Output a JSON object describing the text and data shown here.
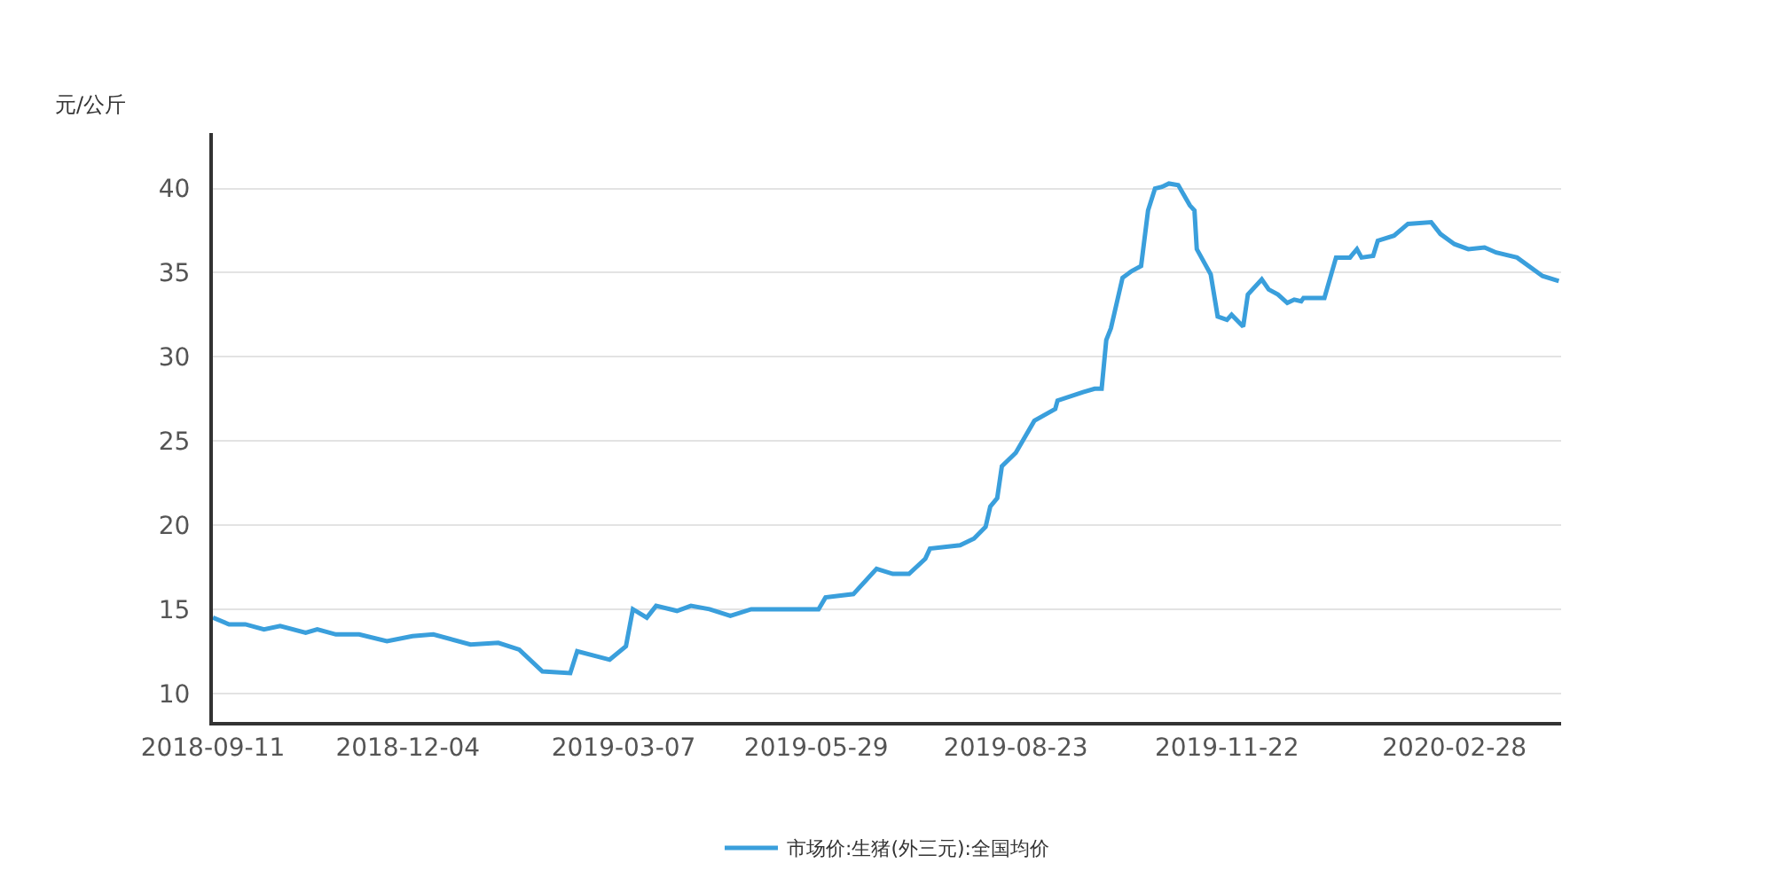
{
  "chart_data": {
    "type": "line",
    "ylabel": "元/公斤",
    "x": [
      "2018-09-11",
      "2018-09-18",
      "2018-09-25",
      "2018-10-03",
      "2018-10-10",
      "2018-10-21",
      "2018-10-26",
      "2018-11-03",
      "2018-11-13",
      "2018-11-25",
      "2018-12-06",
      "2018-12-15",
      "2018-12-31",
      "2019-01-12",
      "2019-01-21",
      "2019-01-31",
      "2019-02-12",
      "2019-02-15",
      "2019-03-01",
      "2019-03-08",
      "2019-03-11",
      "2019-03-17",
      "2019-03-21",
      "2019-03-30",
      "2019-04-05",
      "2019-04-13",
      "2019-04-22",
      "2019-05-01",
      "2019-05-30",
      "2019-06-02",
      "2019-06-14",
      "2019-06-24",
      "2019-07-01",
      "2019-07-08",
      "2019-07-15",
      "2019-07-17",
      "2019-07-30",
      "2019-08-05",
      "2019-08-10",
      "2019-08-12",
      "2019-08-15",
      "2019-08-17",
      "2019-08-23",
      "2019-08-31",
      "2019-09-09",
      "2019-09-10",
      "2019-09-21",
      "2019-09-26",
      "2019-09-29",
      "2019-10-01",
      "2019-10-03",
      "2019-10-08",
      "2019-10-12",
      "2019-10-16",
      "2019-10-19",
      "2019-10-22",
      "2019-10-25",
      "2019-10-28",
      "2019-11-01",
      "2019-11-06",
      "2019-11-08",
      "2019-11-09",
      "2019-11-15",
      "2019-11-18",
      "2019-11-22",
      "2019-11-24",
      "2019-11-29",
      "2019-12-01",
      "2019-12-07",
      "2019-12-10",
      "2019-12-14",
      "2019-12-18",
      "2019-12-21",
      "2019-12-24",
      "2019-12-25",
      "2020-01-03",
      "2020-01-08",
      "2020-01-14",
      "2020-01-17",
      "2020-01-19",
      "2020-01-24",
      "2020-01-26",
      "2020-02-02",
      "2020-02-08",
      "2020-02-18",
      "2020-02-22",
      "2020-02-28",
      "2020-03-05",
      "2020-03-12",
      "2020-03-17",
      "2020-03-26",
      "2020-04-06",
      "2020-04-13"
    ],
    "series": [
      {
        "name": "市场价:生猪(外三元):全国均价",
        "color": "#3a9fdc",
        "values": [
          14.5,
          14.1,
          14.1,
          13.8,
          14.0,
          13.6,
          13.8,
          13.5,
          13.5,
          13.1,
          13.4,
          13.5,
          12.9,
          13.0,
          12.6,
          11.3,
          11.2,
          12.5,
          12.0,
          12.8,
          15.0,
          14.5,
          15.2,
          14.9,
          15.2,
          15.0,
          14.6,
          15.0,
          15.0,
          15.7,
          15.9,
          17.4,
          17.1,
          17.1,
          18.0,
          18.6,
          18.8,
          19.2,
          19.9,
          21.1,
          21.6,
          23.5,
          24.3,
          26.2,
          26.9,
          27.4,
          27.9,
          28.1,
          28.1,
          31.0,
          31.7,
          34.7,
          35.1,
          35.4,
          38.7,
          40.0,
          40.1,
          40.3,
          40.2,
          39.0,
          38.7,
          36.4,
          34.9,
          32.4,
          32.2,
          32.5,
          31.8,
          33.7,
          34.6,
          34.0,
          33.7,
          33.2,
          33.4,
          33.3,
          33.5,
          33.5,
          35.9,
          35.9,
          36.4,
          35.9,
          36.0,
          36.9,
          37.2,
          37.9,
          38.0,
          37.3,
          36.7,
          36.4,
          36.5,
          36.2,
          35.9,
          34.8,
          34.5
        ]
      }
    ],
    "xlim": [
      "2018-09-11",
      "2020-04-14"
    ],
    "xticks": [
      "2018-09-11",
      "2018-12-04",
      "2019-03-07",
      "2019-05-29",
      "2019-08-23",
      "2019-11-22",
      "2020-02-28"
    ],
    "ylim": [
      8.3,
      43.3
    ],
    "yticks": [
      10,
      15,
      20,
      25,
      30,
      35,
      40
    ],
    "grid": "y",
    "legend": "bottom",
    "line_style": "solid"
  }
}
